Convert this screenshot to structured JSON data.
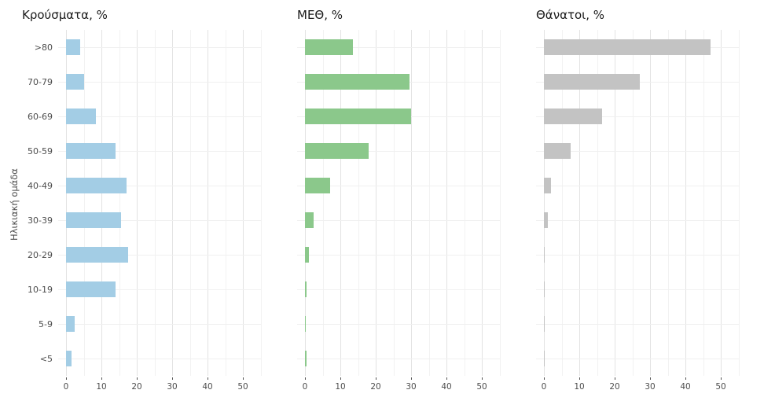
{
  "ylabel": "Ηλικιακή ομάδα",
  "chart_data": [
    {
      "type": "bar",
      "orientation": "horizontal",
      "title": "Κρούσματα, %",
      "color": "#a3cde5",
      "categories": [
        ">80",
        "70-79",
        "60-69",
        "50-59",
        "40-49",
        "30-39",
        "20-29",
        "10-19",
        "5-9",
        "<5"
      ],
      "values": [
        4,
        5,
        8.5,
        14,
        17,
        15.5,
        17.5,
        14,
        2.5,
        1.5
      ],
      "x_ticks": [
        0,
        10,
        20,
        30,
        40,
        50
      ],
      "xlim": [
        0,
        55
      ],
      "xlabel": "",
      "grid": true
    },
    {
      "type": "bar",
      "orientation": "horizontal",
      "title": "ΜΕΘ, %",
      "color": "#8bc88b",
      "categories": [
        ">80",
        "70-79",
        "60-69",
        "50-59",
        "40-49",
        "30-39",
        "20-29",
        "10-19",
        "5-9",
        "<5"
      ],
      "values": [
        13.5,
        29.5,
        30,
        18,
        7,
        2.5,
        1,
        0.4,
        0.3,
        0.4
      ],
      "x_ticks": [
        0,
        10,
        20,
        30,
        40,
        50
      ],
      "xlim": [
        0,
        55
      ],
      "xlabel": "",
      "grid": true
    },
    {
      "type": "bar",
      "orientation": "horizontal",
      "title": "Θάνατοι, %",
      "color": "#c3c3c3",
      "categories": [
        ">80",
        "70-79",
        "60-69",
        "50-59",
        "40-49",
        "30-39",
        "20-29",
        "10-19",
        "5-9",
        "<5"
      ],
      "values": [
        47,
        27,
        16.5,
        7.5,
        2,
        1,
        0.3,
        0.3,
        0.1,
        0.3
      ],
      "x_ticks": [
        0,
        10,
        20,
        30,
        40,
        50
      ],
      "xlim": [
        0,
        55
      ],
      "xlabel": "",
      "grid": true
    }
  ]
}
